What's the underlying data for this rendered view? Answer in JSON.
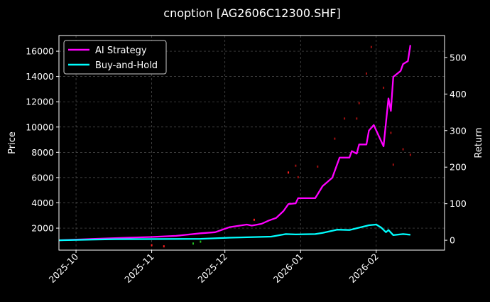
{
  "chart_data": {
    "type": "line",
    "title": "cnoption [AG2606C12300.SHF]",
    "ylabel": "Price",
    "ylabel_right": "Return",
    "xlim": [
      "2025-09-24",
      "2026-03-01"
    ],
    "ylim": [
      260,
      17240
    ],
    "ylim_right": [
      -27,
      560
    ],
    "x_ticks": [
      "2025-10",
      "2025-11",
      "2025-12",
      "2026-01",
      "2026-02"
    ],
    "y_ticks": [
      2000,
      4000,
      6000,
      8000,
      10000,
      12000,
      14000,
      16000
    ],
    "y_ticks_right": [
      0,
      100,
      200,
      300,
      400,
      500
    ],
    "grid": true,
    "legend_position": "top-left",
    "background": "#000000",
    "series": [
      {
        "name": "AI Strategy",
        "axis": "right",
        "color": "#ff00ff",
        "points": [
          [
            "2025-09-24",
            0
          ],
          [
            "2025-10-22",
            7
          ],
          [
            "2025-11-01",
            9
          ],
          [
            "2025-11-11",
            12
          ],
          [
            "2025-11-21",
            19
          ],
          [
            "2025-11-27",
            22
          ],
          [
            "2025-12-03",
            36
          ],
          [
            "2025-12-10",
            43
          ],
          [
            "2025-12-12",
            40
          ],
          [
            "2025-12-16",
            45
          ],
          [
            "2025-12-19",
            54
          ],
          [
            "2025-12-22",
            61
          ],
          [
            "2025-12-25",
            80
          ],
          [
            "2025-12-27",
            99
          ],
          [
            "2025-12-30",
            101
          ],
          [
            "2025-12-31",
            115
          ],
          [
            "2026-01-07",
            115
          ],
          [
            "2026-01-10",
            148
          ],
          [
            "2026-01-14",
            171
          ],
          [
            "2026-01-17",
            226
          ],
          [
            "2026-01-21",
            226
          ],
          [
            "2026-01-22",
            244
          ],
          [
            "2026-01-24",
            237
          ],
          [
            "2026-01-25",
            262
          ],
          [
            "2026-01-28",
            262
          ],
          [
            "2026-01-29",
            300
          ],
          [
            "2026-01-31",
            315
          ],
          [
            "2026-02-04",
            257
          ],
          [
            "2026-02-06",
            388
          ],
          [
            "2026-02-07",
            354
          ],
          [
            "2026-02-08",
            447
          ],
          [
            "2026-02-11",
            463
          ],
          [
            "2026-02-12",
            482
          ],
          [
            "2026-02-14",
            490
          ],
          [
            "2026-02-15",
            534
          ]
        ]
      },
      {
        "name": "Buy-and-Hold",
        "axis": "right",
        "color": "#00ffff",
        "points": [
          [
            "2025-09-24",
            0
          ],
          [
            "2025-10-17",
            3
          ],
          [
            "2025-11-21",
            4
          ],
          [
            "2025-12-03",
            7
          ],
          [
            "2025-12-20",
            10
          ],
          [
            "2025-12-26",
            17
          ],
          [
            "2025-12-30",
            16
          ],
          [
            "2026-01-07",
            17
          ],
          [
            "2026-01-10",
            20
          ],
          [
            "2026-01-16",
            29
          ],
          [
            "2026-01-21",
            28
          ],
          [
            "2026-01-29",
            41
          ],
          [
            "2026-02-01",
            43
          ],
          [
            "2026-02-03",
            35
          ],
          [
            "2026-02-05",
            22
          ],
          [
            "2026-02-06",
            28
          ],
          [
            "2026-02-08",
            14
          ],
          [
            "2026-02-12",
            17
          ],
          [
            "2026-02-15",
            15
          ]
        ]
      }
    ],
    "price_markers": {
      "axis": "left",
      "points": [
        [
          "2025-11-01",
          650,
          "#ff2020"
        ],
        [
          "2025-11-06",
          560,
          "#ff2020"
        ],
        [
          "2025-11-18",
          780,
          "#20c020"
        ],
        [
          "2025-11-21",
          930,
          "#20c020"
        ],
        [
          "2025-12-13",
          2660,
          "#ff2020"
        ],
        [
          "2025-12-27",
          6400,
          "#ff2020"
        ],
        [
          "2025-12-30",
          6940,
          "#a01010"
        ],
        [
          "2025-12-31",
          6030,
          "#a01010"
        ],
        [
          "2026-01-08",
          6870,
          "#a01010"
        ],
        [
          "2026-01-15",
          9080,
          "#a01010"
        ],
        [
          "2026-01-19",
          10670,
          "#a01010"
        ],
        [
          "2026-01-24",
          10670,
          "#a01010"
        ],
        [
          "2026-01-25",
          11890,
          "#a01010"
        ],
        [
          "2026-01-28",
          14230,
          "#a01010"
        ],
        [
          "2026-01-30",
          16330,
          "#a01010"
        ],
        [
          "2026-02-04",
          13110,
          "#a01010"
        ],
        [
          "2026-02-07",
          9540,
          "#a01010"
        ],
        [
          "2026-02-08",
          7020,
          "#a01010"
        ],
        [
          "2026-02-12",
          8240,
          "#a01010"
        ],
        [
          "2026-02-15",
          7800,
          "#a01010"
        ]
      ]
    }
  }
}
